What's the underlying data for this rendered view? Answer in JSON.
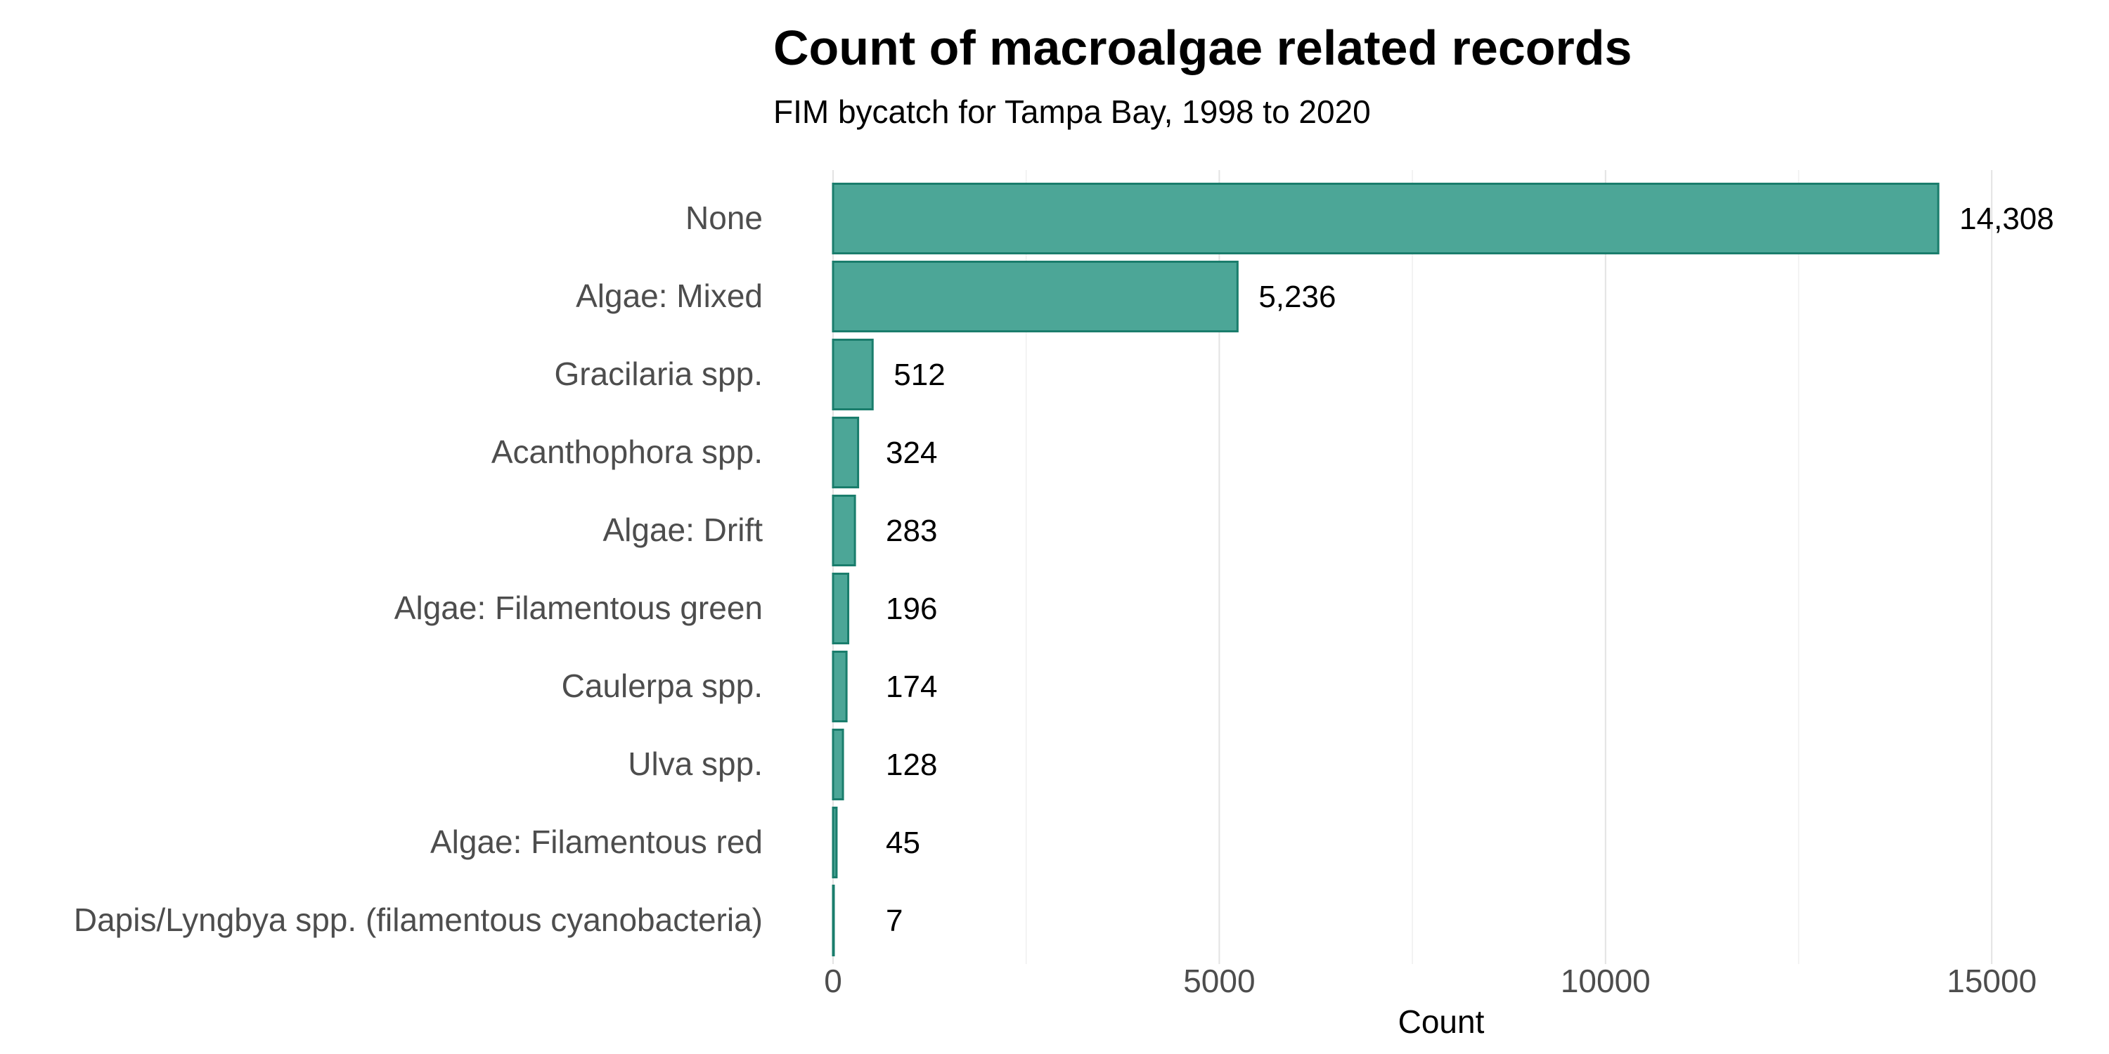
{
  "chart_data": {
    "type": "bar",
    "orientation": "horizontal",
    "title": "Count of macroalgae related records",
    "subtitle": "FIM bycatch for Tampa Bay, 1998 to 2020",
    "xlabel": "Count",
    "ylabel": "",
    "categories": [
      "None",
      "Algae: Mixed",
      "Gracilaria spp.",
      "Acanthophora spp.",
      "Algae: Drift",
      "Algae: Filamentous green",
      "Caulerpa spp.",
      "Ulva spp.",
      "Algae: Filamentous red",
      "Dapis/Lyngbya spp. (filamentous cyanobacteria)"
    ],
    "values": [
      14308,
      5236,
      512,
      324,
      283,
      196,
      174,
      128,
      45,
      7
    ],
    "value_labels": [
      "14,308",
      "5,236",
      "512",
      "324",
      "283",
      "196",
      "174",
      "128",
      "45",
      "7"
    ],
    "xlim": [
      0,
      15000
    ],
    "xticks": [
      0,
      5000,
      10000,
      15000
    ],
    "xtick_labels": [
      "0",
      "5000",
      "10000",
      "15000"
    ],
    "grid": "vertical",
    "legend": "none",
    "bar_fill": "#4ca697",
    "bar_stroke": "#1a7d6c"
  }
}
